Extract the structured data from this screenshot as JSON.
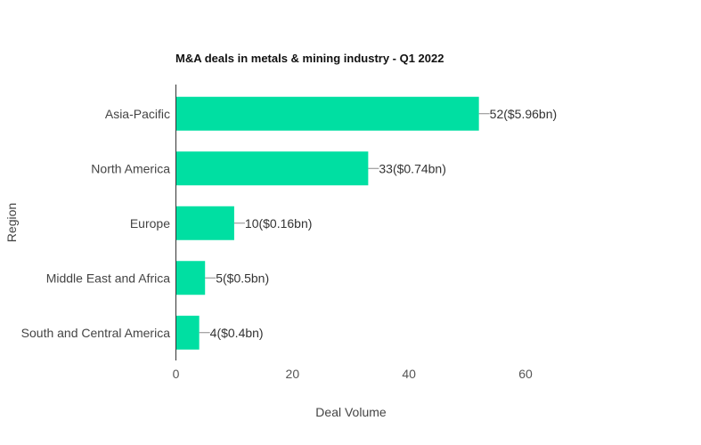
{
  "chart_data": {
    "type": "bar",
    "orientation": "horizontal",
    "title": "M&A deals in metals & mining industry - Q1 2022",
    "xlabel": "Deal Volume",
    "ylabel": "Region",
    "categories": [
      "Asia-Pacific",
      "North America",
      "Europe",
      "Middle East and Africa",
      "South and Central America"
    ],
    "values": [
      52,
      33,
      10,
      5,
      4
    ],
    "data_labels": [
      "52($5.96bn)",
      "33($0.74bn)",
      "10($0.16bn)",
      "5($0.5bn)",
      "4($0.4bn)"
    ],
    "xticks": [
      "0",
      "20",
      "40",
      "60"
    ],
    "xtick_values": [
      0,
      20,
      40,
      60
    ],
    "xlim": [
      0,
      60
    ],
    "grid": false,
    "bar_color": "#00dfa2"
  }
}
